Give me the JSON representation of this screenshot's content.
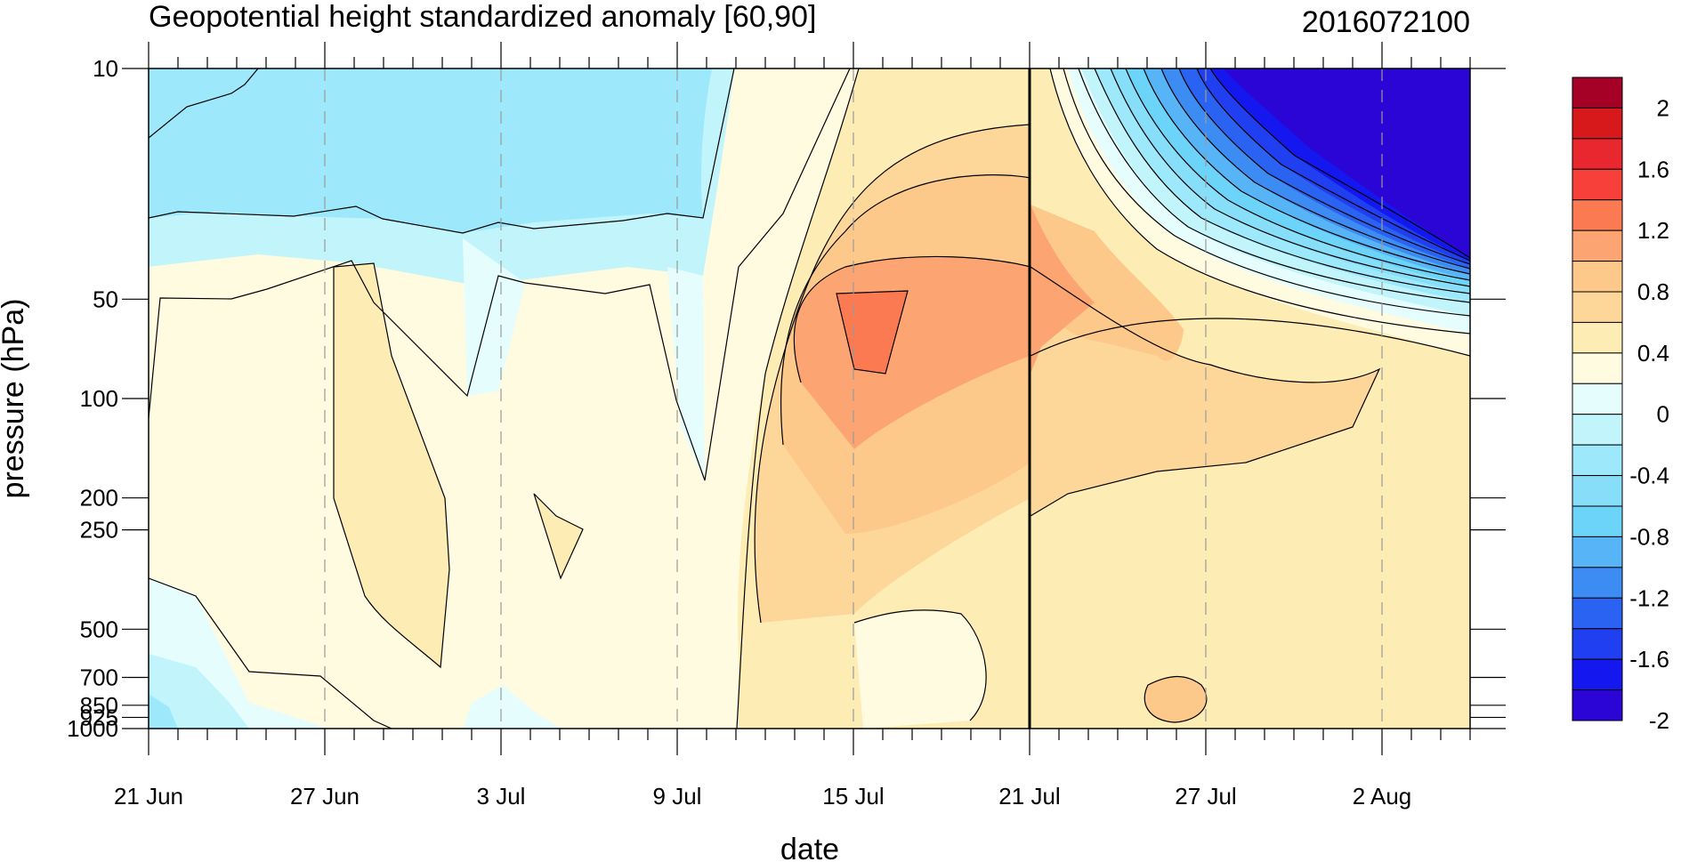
{
  "chart_data": {
    "type": "heatmap",
    "title": "Geopotential height standardized anomaly [60,90]",
    "subtitle": "2016072100",
    "xlabel": "date",
    "ylabel": "pressure (hPa)",
    "x_tick_labels": [
      "21 Jun",
      "27 Jun",
      "3 Jul",
      "9 Jul",
      "15 Jul",
      "21 Jul",
      "27 Jul",
      "2 Aug"
    ],
    "x_tick_days": [
      0,
      6,
      12,
      18,
      24,
      30,
      36,
      42
    ],
    "x_range_days": [
      0,
      45
    ],
    "y_tick_labels": [
      "10",
      "50",
      "100",
      "200",
      "250",
      "500",
      "700",
      "850",
      "925",
      "1000"
    ],
    "y_tick_values": [
      10,
      50,
      100,
      200,
      250,
      500,
      700,
      850,
      925,
      1000
    ],
    "y_range": [
      10,
      1000
    ],
    "y_scale": "log",
    "y_inverted": true,
    "grid": "dashed vertical lines at x ticks",
    "marker_line_date": "21 Jul",
    "colorbar": {
      "labels": [
        "2",
        "1.6",
        "1.2",
        "0.8",
        "0.4",
        "0",
        "-0.4",
        "-0.8",
        "-1.2",
        "-1.6",
        "-2"
      ],
      "label_values": [
        2,
        1.6,
        1.2,
        0.8,
        0.4,
        0,
        -0.4,
        -0.8,
        -1.2,
        -1.6,
        -2
      ],
      "colors_top_to_bottom": [
        "#a50026",
        "#d7191c",
        "#e8282e",
        "#f7403a",
        "#fc7a52",
        "#fca572",
        "#fdc98a",
        "#fdd699",
        "#fdedb5",
        "#fefbe0",
        "#e5fdfd",
        "#c2f5fb",
        "#9de9fb",
        "#86def9",
        "#6cd3f9",
        "#57b4f7",
        "#3d8cf3",
        "#2a63f2",
        "#1f3ff1",
        "#1418ef",
        "#2b04d6"
      ]
    },
    "features": [
      {
        "name": "negative anomaly upper levels",
        "days": [
          0,
          10
        ],
        "p": [
          10,
          40
        ],
        "value": -0.6
      },
      {
        "name": "positive anomaly core",
        "days": [
          26,
          28
        ],
        "p": [
          50,
          100
        ],
        "value": 1.1
      },
      {
        "name": "strong negative anomaly",
        "days": [
          36,
          45
        ],
        "p": [
          10,
          40
        ],
        "value": -2.2
      }
    ]
  }
}
